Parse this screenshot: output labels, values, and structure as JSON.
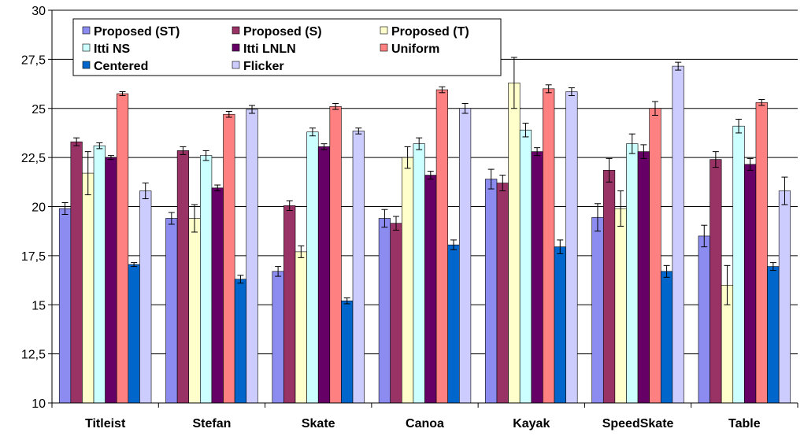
{
  "chart_data": {
    "type": "bar",
    "title": "",
    "xlabel": "",
    "ylabel": "",
    "ylim": [
      10,
      30
    ],
    "y_ticks": [
      "10",
      "12,5",
      "15",
      "17,5",
      "20",
      "22,5",
      "25",
      "27,5",
      "30"
    ],
    "y_tick_values": [
      10,
      12.5,
      15,
      17.5,
      20,
      22.5,
      25,
      27.5,
      30
    ],
    "grid": true,
    "legend_position": "top-left inside",
    "categories": [
      "Titleist",
      "Stefan",
      "Skate",
      "Canoa",
      "Kayak",
      "SpeedSkate",
      "Table"
    ],
    "series": [
      {
        "name": "Proposed (ST)",
        "color": "#8c8cf0",
        "values": [
          19.9,
          19.4,
          16.7,
          19.4,
          21.4,
          19.45,
          18.5
        ],
        "errors": [
          0.3,
          0.3,
          0.25,
          0.45,
          0.5,
          0.7,
          0.55
        ]
      },
      {
        "name": "Proposed (S)",
        "color": "#993366",
        "values": [
          23.3,
          22.85,
          20.05,
          19.15,
          21.2,
          21.85,
          22.4
        ],
        "errors": [
          0.2,
          0.2,
          0.25,
          0.35,
          0.4,
          0.6,
          0.4
        ]
      },
      {
        "name": "Proposed (T)",
        "color": "#ffffcc",
        "values": [
          21.7,
          19.4,
          17.7,
          22.5,
          26.3,
          19.9,
          16.0
        ],
        "errors": [
          1.1,
          0.7,
          0.3,
          0.55,
          1.3,
          0.9,
          1.0
        ]
      },
      {
        "name": "Itti NS",
        "color": "#ccffff",
        "values": [
          23.1,
          22.6,
          23.8,
          23.2,
          23.9,
          23.2,
          24.1
        ],
        "errors": [
          0.15,
          0.25,
          0.2,
          0.3,
          0.35,
          0.5,
          0.35
        ]
      },
      {
        "name": "Itti LNLN",
        "color": "#660066",
        "values": [
          22.5,
          20.95,
          23.05,
          21.6,
          22.8,
          22.8,
          22.15
        ],
        "errors": [
          0.1,
          0.15,
          0.15,
          0.2,
          0.2,
          0.35,
          0.3
        ]
      },
      {
        "name": "Uniform",
        "color": "#ff8080",
        "values": [
          25.75,
          24.7,
          25.1,
          25.95,
          26.0,
          25.0,
          25.3
        ],
        "errors": [
          0.1,
          0.15,
          0.15,
          0.15,
          0.2,
          0.35,
          0.15
        ]
      },
      {
        "name": "Centered",
        "color": "#0066cc",
        "values": [
          17.05,
          16.3,
          15.2,
          18.05,
          17.95,
          16.7,
          16.95
        ],
        "errors": [
          0.1,
          0.2,
          0.15,
          0.25,
          0.35,
          0.3,
          0.2
        ]
      },
      {
        "name": "Flicker",
        "color": "#ccccff",
        "values": [
          20.8,
          24.95,
          23.85,
          25.0,
          25.85,
          27.15,
          20.8
        ],
        "errors": [
          0.4,
          0.2,
          0.15,
          0.25,
          0.2,
          0.2,
          0.7
        ]
      }
    ]
  }
}
